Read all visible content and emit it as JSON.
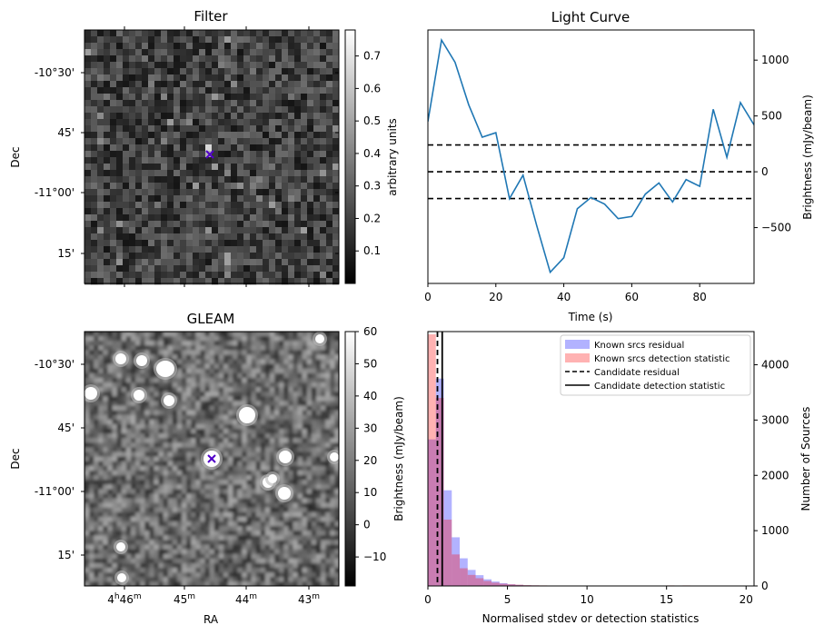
{
  "chart_data": [
    {
      "type": "heatmap",
      "title": "Filter",
      "ylabel": "Dec",
      "y_ticks": [
        "-10°30'",
        "45'",
        "-11°00'",
        "15'"
      ],
      "colorbar": {
        "label": "arbitrary units",
        "range": [
          0.0,
          0.78
        ],
        "ticks": [
          "0.1",
          "0.2",
          "0.3",
          "0.4",
          "0.5",
          "0.6",
          "0.7"
        ],
        "colormap": "gray"
      },
      "marker": {
        "symbol": "x",
        "color": "#5000c8"
      }
    },
    {
      "type": "line",
      "title": "Light Curve",
      "xlabel": "Time (s)",
      "ylabel": "Brightness (mJy/beam)",
      "xlim": [
        0,
        96
      ],
      "ylim": [
        -1000,
        1270
      ],
      "x_ticks": [
        0,
        20,
        40,
        60,
        80
      ],
      "y_ticks": [
        -500,
        0,
        500,
        1000
      ],
      "series": [
        {
          "color": "#1f77b4",
          "x": [
            0,
            4,
            8,
            12,
            16,
            20,
            24,
            28,
            32,
            36,
            40,
            44,
            48,
            52,
            56,
            60,
            64,
            68,
            72,
            76,
            80,
            84,
            88,
            92,
            96
          ],
          "y": [
            450,
            1180,
            980,
            600,
            310,
            350,
            -240,
            -30,
            -480,
            -900,
            -770,
            -330,
            -230,
            -290,
            -420,
            -400,
            -200,
            -100,
            -270,
            -70,
            -130,
            560,
            130,
            620,
            420
          ]
        }
      ],
      "hlines": [
        {
          "y": 240,
          "style": "dashed"
        },
        {
          "y": 0,
          "style": "dashed"
        },
        {
          "y": -240,
          "style": "dashed"
        }
      ]
    },
    {
      "type": "heatmap",
      "title": "GLEAM",
      "xlabel": "RA",
      "ylabel": "Dec",
      "x_ticks": [
        "4h46m",
        "45m",
        "44m",
        "43m"
      ],
      "y_ticks": [
        "-10°30'",
        "45'",
        "-11°00'",
        "15'"
      ],
      "colorbar": {
        "label": "Brightness (mJy/beam)",
        "range": [
          -19,
          60
        ],
        "ticks": [
          "-10",
          "0",
          "10",
          "20",
          "30",
          "40",
          "50",
          "60"
        ],
        "colormap": "gray"
      },
      "marker": {
        "symbol": "x",
        "color": "#5000c8"
      }
    },
    {
      "type": "bar",
      "subtype": "histogram",
      "xlabel": "Normalised stdev or detection statistics",
      "ylabel": "Number of Sources",
      "xlim": [
        0,
        20.5
      ],
      "ylim": [
        0,
        4600
      ],
      "x_ticks": [
        0,
        5,
        10,
        15,
        20
      ],
      "y_ticks": [
        0,
        1000,
        2000,
        3000,
        4000
      ],
      "bin_width": 0.5,
      "series": [
        {
          "name": "Known srcs residual",
          "color": "#0000ff",
          "alpha": 0.3,
          "values": [
            2650,
            3750,
            1730,
            880,
            500,
            290,
            195,
            120,
            80,
            50,
            30,
            20,
            12,
            10,
            8,
            6,
            5,
            4,
            3,
            3,
            2,
            2,
            2,
            2,
            1,
            1,
            1,
            1,
            1,
            1,
            1,
            1,
            1,
            1,
            1,
            1,
            1,
            1,
            1,
            1,
            1
          ]
        },
        {
          "name": "Known srcs detection statistic",
          "color": "#ff0000",
          "alpha": 0.3,
          "values": [
            4550,
            3400,
            1200,
            570,
            320,
            200,
            140,
            90,
            60,
            40,
            30,
            22,
            15,
            12,
            10,
            8,
            6,
            5,
            4,
            4,
            3,
            3,
            3,
            2,
            2,
            2,
            2,
            2,
            2,
            2,
            10,
            2,
            10,
            2,
            2,
            2,
            2,
            2,
            2,
            2,
            2
          ]
        }
      ],
      "vlines": [
        {
          "name": "Candidate residual",
          "x": 0.6,
          "style": "dashed"
        },
        {
          "name": "Candidate detection statistic",
          "x": 0.9,
          "style": "solid"
        }
      ],
      "legend_position": "top-right"
    }
  ]
}
